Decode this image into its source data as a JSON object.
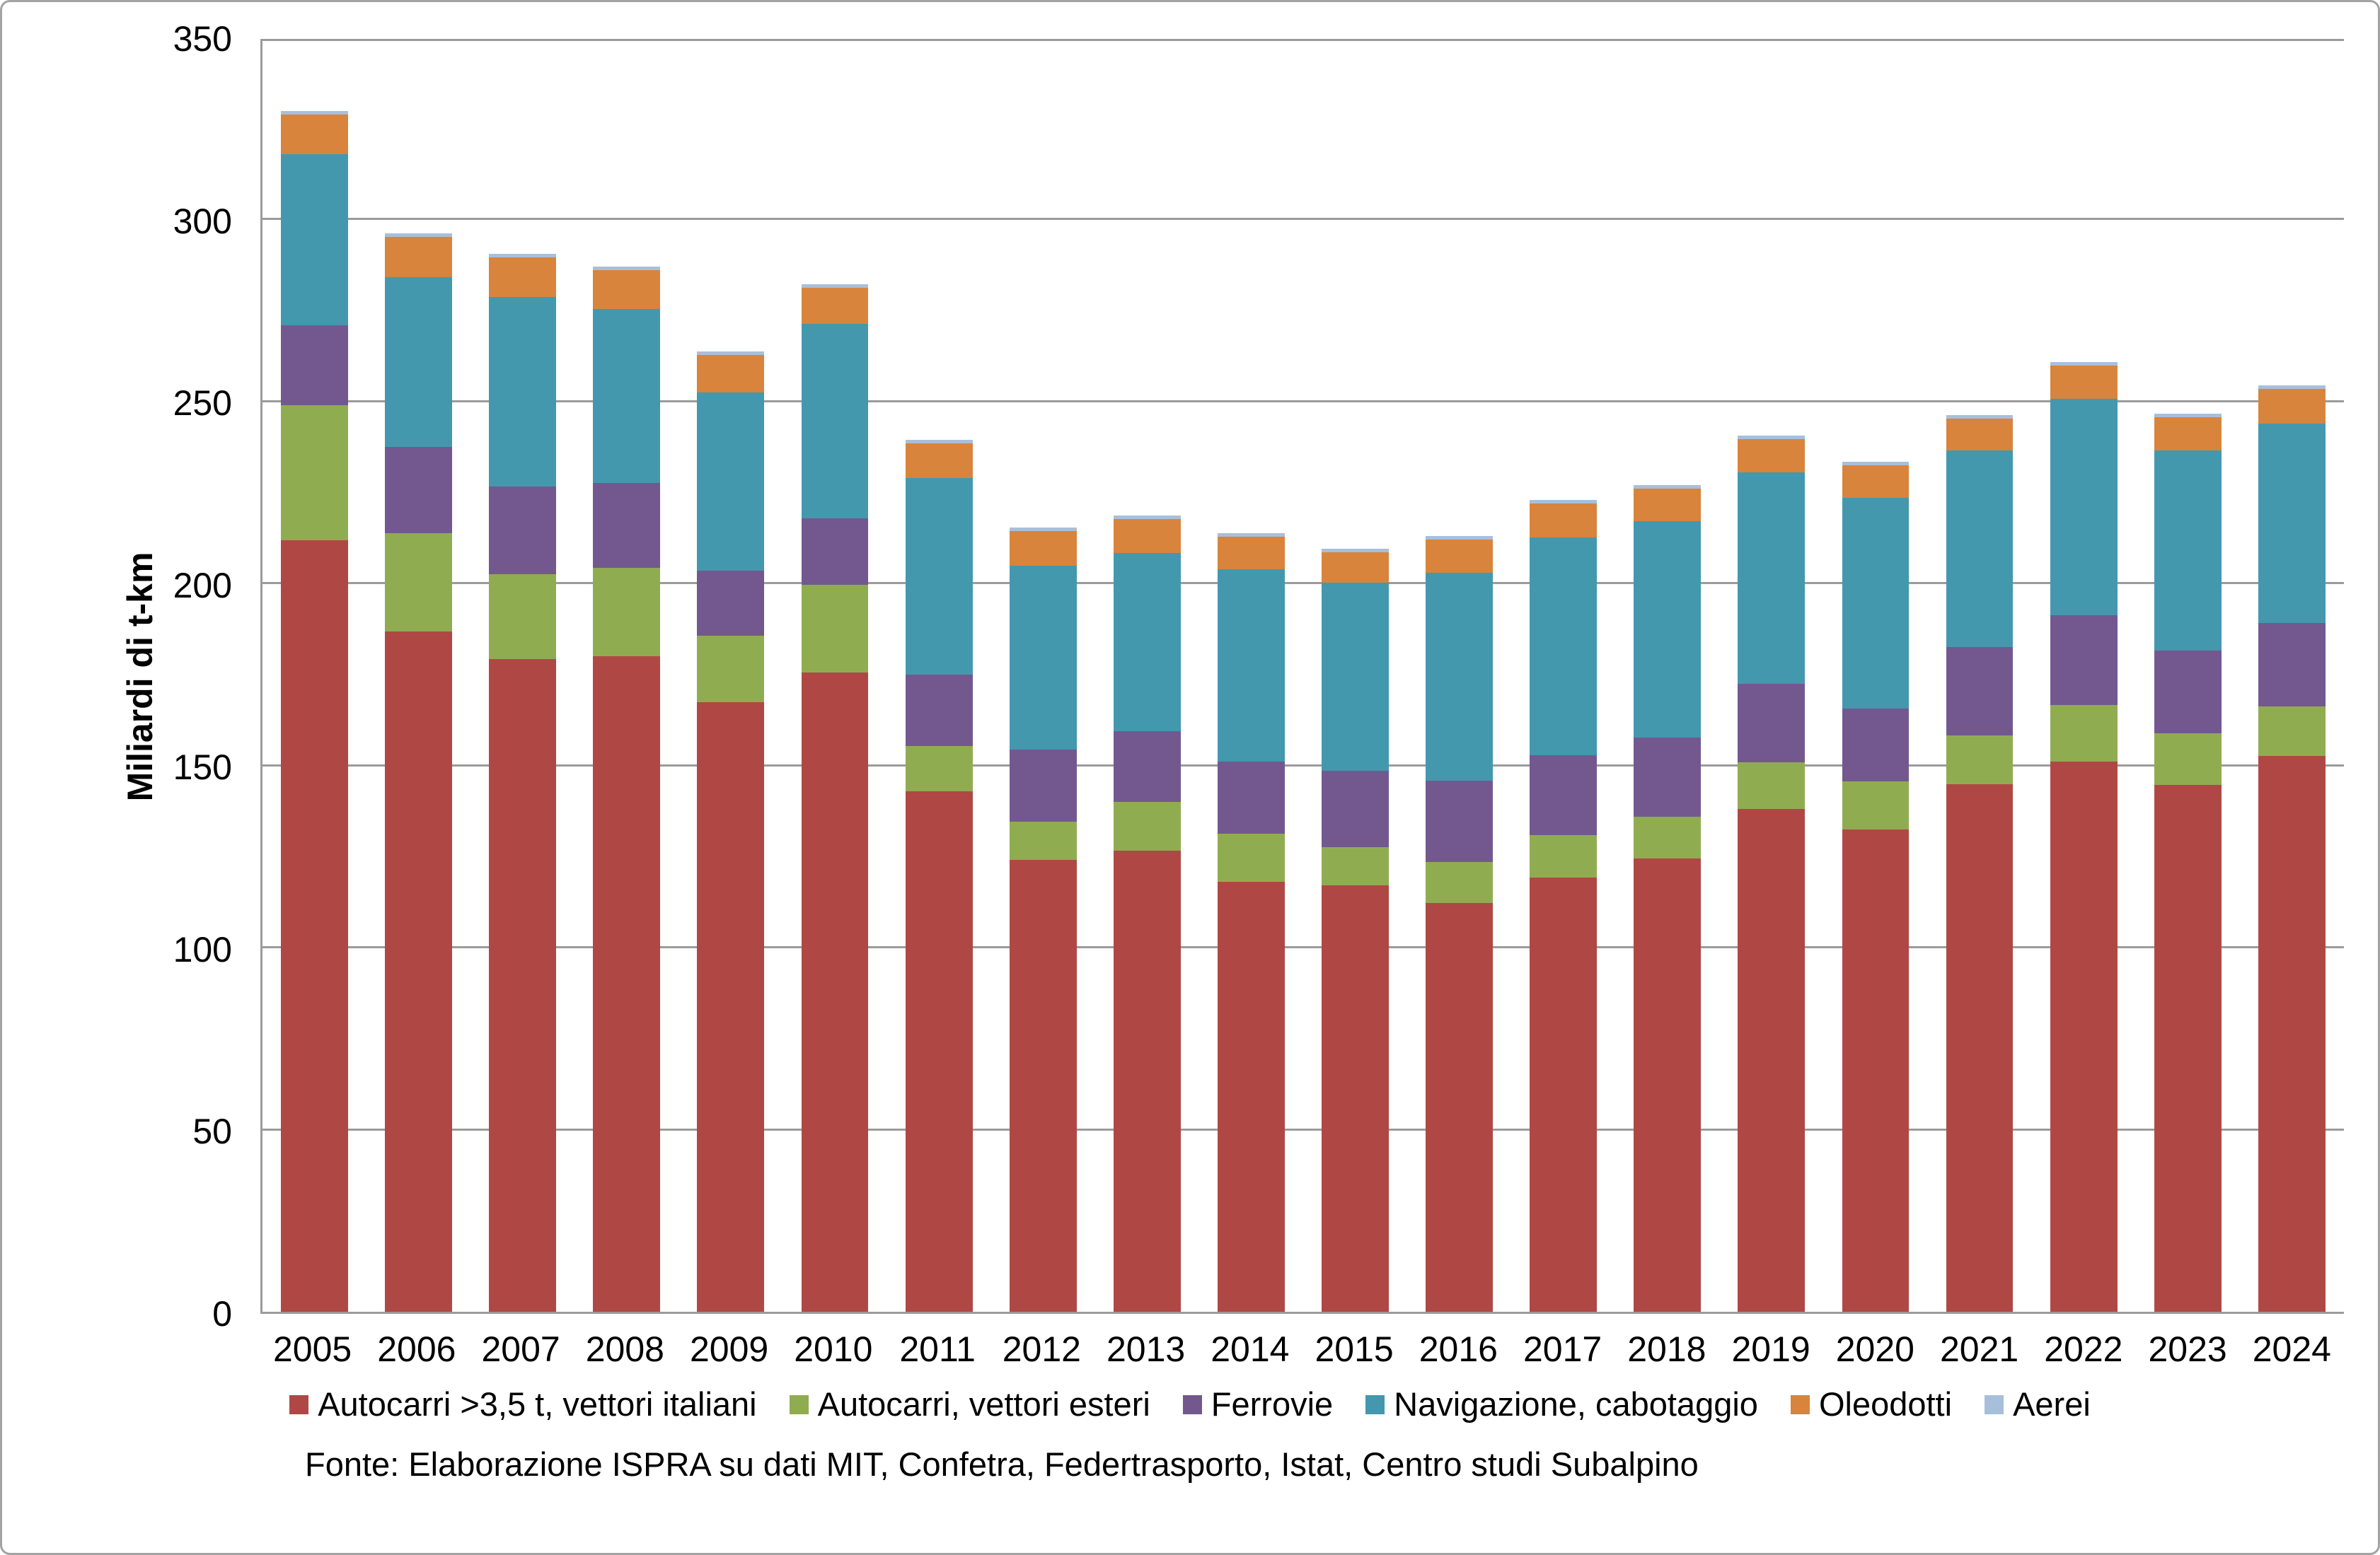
{
  "chart": {
    "y_axis_title": "Miliardi di t-km",
    "source": "Fonte: Elaborazione ISPRA su dati MIT, Confetra, Federtrasporto, Istat, Centro studi Subalpino"
  },
  "layout_colors": {
    "gridline": "#9b9b9b",
    "axis": "#9b9b9b",
    "chart_border": "#a3a3a3",
    "background": "#ffffff",
    "text": "#000000"
  },
  "chart_data": {
    "type": "bar",
    "stacked": true,
    "title": "",
    "xlabel": "",
    "ylabel": "Miliardi di t-km",
    "ylim": [
      0,
      350
    ],
    "ytick_step": 50,
    "yticks": [
      0,
      50,
      100,
      150,
      200,
      250,
      300,
      350
    ],
    "grid": "horizontal",
    "legend_position": "bottom",
    "categories": [
      "2005",
      "2006",
      "2007",
      "2008",
      "2009",
      "2010",
      "2011",
      "2012",
      "2013",
      "2014",
      "2015",
      "2016",
      "2017",
      "2018",
      "2019",
      "2020",
      "2021",
      "2022",
      "2023",
      "2024"
    ],
    "series": [
      {
        "name": "Autocarri >3,5 t, vettori italiani",
        "color": "#af4845",
        "values": [
          211.8,
          186.8,
          179.2,
          180.0,
          167.3,
          175.5,
          142.8,
          124.1,
          126.5,
          118.0,
          117.0,
          112.3,
          119.2,
          124.5,
          138.0,
          132.3,
          144.8,
          151.0,
          144.7,
          152.6
        ]
      },
      {
        "name": "Autocarri, vettori esteri",
        "color": "#90ac51",
        "values": [
          37.0,
          27.0,
          23.3,
          24.2,
          18.3,
          24.0,
          12.5,
          10.4,
          13.5,
          13.2,
          10.6,
          11.2,
          11.7,
          11.3,
          12.9,
          13.2,
          13.5,
          15.6,
          14.1,
          13.6
        ]
      },
      {
        "name": "Ferrovie",
        "color": "#73588f",
        "values": [
          22.0,
          23.7,
          24.1,
          23.4,
          17.9,
          18.3,
          19.6,
          19.9,
          19.4,
          19.8,
          21.0,
          22.2,
          21.8,
          21.9,
          21.4,
          20.1,
          24.1,
          24.6,
          22.8,
          22.8
        ]
      },
      {
        "name": "Navigazione, cabotaggio",
        "color": "#4398ae",
        "values": [
          46.9,
          46.6,
          52.0,
          47.6,
          48.9,
          53.3,
          54.0,
          50.4,
          48.9,
          52.8,
          51.6,
          57.2,
          59.9,
          59.3,
          58.2,
          57.8,
          54.0,
          59.4,
          54.8,
          54.9
        ]
      },
      {
        "name": "Oleodotti",
        "color": "#d8843c",
        "values": [
          10.9,
          10.9,
          10.8,
          10.7,
          10.2,
          10.0,
          9.5,
          9.5,
          9.3,
          8.9,
          8.2,
          9.0,
          9.3,
          9.0,
          9.1,
          8.9,
          8.7,
          9.1,
          9.2,
          9.4
        ]
      },
      {
        "name": "Aerei",
        "color": "#a8bfdc",
        "values": [
          1.0,
          1.0,
          1.0,
          1.0,
          1.0,
          1.0,
          1.0,
          1.0,
          1.0,
          1.0,
          1.0,
          1.0,
          1.0,
          1.0,
          1.0,
          1.0,
          1.0,
          1.0,
          1.0,
          1.0
        ]
      }
    ]
  }
}
